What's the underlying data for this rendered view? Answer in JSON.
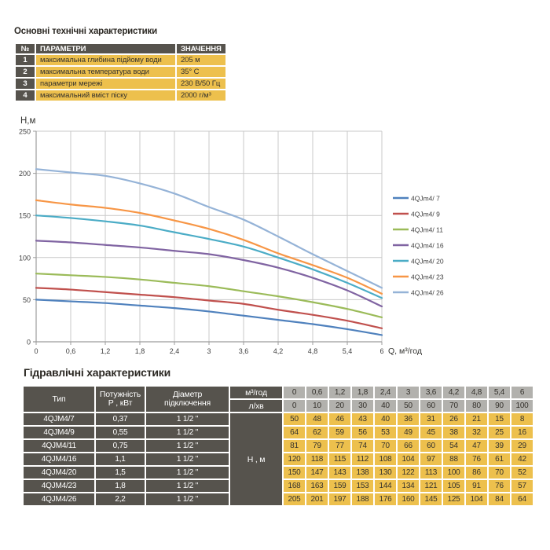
{
  "top_section": {
    "title": "Основні технічні характеристики",
    "table": {
      "headers": {
        "num": "№",
        "param": "ПАРАМЕТРИ",
        "value": "ЗНАЧЕННЯ"
      },
      "rows": [
        {
          "num": "1",
          "param": "максимальна глибина підйому води",
          "value": "205 м"
        },
        {
          "num": "2",
          "param": "максимальна температура води",
          "value": "35° С"
        },
        {
          "num": "3",
          "param": "параметри мережі",
          "value": "230 В/50 Гц"
        },
        {
          "num": "4",
          "param": "максимальний вміст піску",
          "value": "2000 г/м³"
        }
      ]
    }
  },
  "chart_data": {
    "type": "line",
    "title": "",
    "xlabel": "Q,  м³/год",
    "ylabel": "Н,м",
    "xlim": [
      0,
      6
    ],
    "ylim": [
      0,
      250
    ],
    "grid": true,
    "legend_position": "right",
    "x": [
      0,
      0.6,
      1.2,
      1.8,
      2.4,
      3,
      3.6,
      4.2,
      4.8,
      5.4,
      6
    ],
    "xticks": [
      "0",
      "0,6",
      "1,2",
      "1,8",
      "2,4",
      "3",
      "3,6",
      "4,2",
      "4,8",
      "5,4",
      "6"
    ],
    "yticks": [
      "0",
      "50",
      "100",
      "150",
      "200",
      "250"
    ],
    "series": [
      {
        "name": "4QJm4/ 7",
        "color": "#4F81BD",
        "values": [
          50,
          48,
          46,
          43,
          40,
          36,
          31,
          26,
          21,
          15,
          8
        ]
      },
      {
        "name": "4QJm4/ 9",
        "color": "#C0504D",
        "values": [
          64,
          62,
          59,
          56,
          53,
          49,
          45,
          38,
          32,
          25,
          16
        ]
      },
      {
        "name": "4QJm4/ 11",
        "color": "#9BBB59",
        "values": [
          81,
          79,
          77,
          74,
          70,
          66,
          60,
          54,
          47,
          39,
          29
        ]
      },
      {
        "name": "4QJm4/ 16",
        "color": "#8064A2",
        "values": [
          120,
          118,
          115,
          112,
          108,
          104,
          97,
          88,
          76,
          61,
          42
        ]
      },
      {
        "name": "4QJm4/ 20",
        "color": "#4BACC6",
        "values": [
          150,
          147,
          143,
          138,
          130,
          122,
          113,
          100,
          86,
          70,
          52
        ]
      },
      {
        "name": "4QJm4/ 23",
        "color": "#F79646",
        "values": [
          168,
          163,
          159,
          153,
          144,
          134,
          121,
          105,
          91,
          76,
          57
        ]
      },
      {
        "name": "4QJm4/ 26",
        "color": "#95B3D7",
        "values": [
          205,
          201,
          197,
          188,
          176,
          160,
          145,
          125,
          104,
          84,
          64
        ]
      }
    ]
  },
  "hydraulic": {
    "title": "Гідравлічні характеристики",
    "headers": {
      "type": "Тип",
      "power_l1": "Потужність",
      "power_l2": "Р , кВт",
      "diameter_l1": "Діаметр",
      "diameter_l2": "підключення",
      "flow_m3": "м³/год",
      "flow_l": "л/хв",
      "head": "Н , м"
    },
    "flow_m3_values": [
      "0",
      "0,6",
      "1,2",
      "1,8",
      "2,4",
      "3",
      "3,6",
      "4,2",
      "4,8",
      "5,4",
      "6"
    ],
    "flow_l_values": [
      "0",
      "10",
      "20",
      "30",
      "40",
      "50",
      "60",
      "70",
      "80",
      "90",
      "100"
    ],
    "rows": [
      {
        "type": "4QJM4/7",
        "power": "0,37",
        "diameter": "1 1/2 \"",
        "values": [
          "50",
          "48",
          "46",
          "43",
          "40",
          "36",
          "31",
          "26",
          "21",
          "15",
          "8"
        ]
      },
      {
        "type": "4QJM4/9",
        "power": "0,55",
        "diameter": "1 1/2 \"",
        "values": [
          "64",
          "62",
          "59",
          "56",
          "53",
          "49",
          "45",
          "38",
          "32",
          "25",
          "16"
        ]
      },
      {
        "type": "4QJM4/11",
        "power": "0,75",
        "diameter": "1 1/2 \"",
        "values": [
          "81",
          "79",
          "77",
          "74",
          "70",
          "66",
          "60",
          "54",
          "47",
          "39",
          "29"
        ]
      },
      {
        "type": "4QJM4/16",
        "power": "1,1",
        "diameter": "1 1/2 \"",
        "values": [
          "120",
          "118",
          "115",
          "112",
          "108",
          "104",
          "97",
          "88",
          "76",
          "61",
          "42"
        ]
      },
      {
        "type": "4QJM4/20",
        "power": "1,5",
        "diameter": "1 1/2 \"",
        "values": [
          "150",
          "147",
          "143",
          "138",
          "130",
          "122",
          "113",
          "100",
          "86",
          "70",
          "52"
        ]
      },
      {
        "type": "4QJM4/23",
        "power": "1,8",
        "diameter": "1 1/2 \"",
        "values": [
          "168",
          "163",
          "159",
          "153",
          "144",
          "134",
          "121",
          "105",
          "91",
          "76",
          "57"
        ]
      },
      {
        "type": "4QJM4/26",
        "power": "2,2",
        "diameter": "1 1/2 \"",
        "values": [
          "205",
          "201",
          "197",
          "188",
          "176",
          "160",
          "145",
          "125",
          "104",
          "84",
          "64"
        ]
      }
    ]
  },
  "colors": {
    "cell_dark": "#56534d",
    "cell_yellow": "#edc04d",
    "cell_gray": "#b2b1ad",
    "grid": "#c9c9c9",
    "axis": "#9c9c9c",
    "chart_text": "#3f3f3f"
  }
}
